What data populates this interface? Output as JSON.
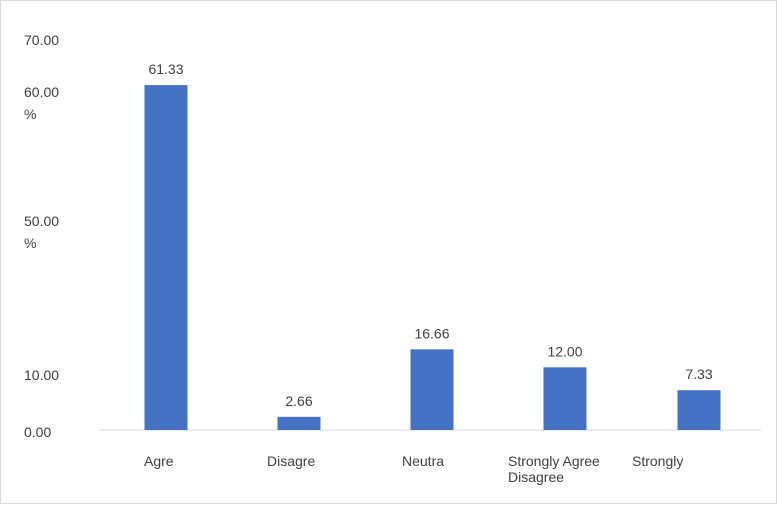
{
  "chart_data": {
    "type": "bar",
    "categories": [
      "Agre",
      "Disagre",
      "Neutra",
      "Strongly Agree",
      "Strongly Disagree"
    ],
    "category_lines": [
      [
        "Agre"
      ],
      [
        "Disagre"
      ],
      [
        "Neutra"
      ],
      [
        "Strongly Agree"
      ],
      [
        "Strongly",
        "Disagree"
      ]
    ],
    "values": [
      61.33,
      2.66,
      16.66,
      12.0,
      7.33
    ],
    "data_labels": [
      "61.33",
      "2.66",
      "16.66",
      "12.00",
      "7.33"
    ],
    "y_tick_labels": [
      {
        "value": 70,
        "lines": [
          "70.00"
        ]
      },
      {
        "value": 60,
        "lines": [
          "60.00",
          "%"
        ]
      },
      {
        "value": 50,
        "lines": [
          "50.00",
          "%"
        ]
      },
      {
        "value": 10,
        "lines": [
          "10.00"
        ]
      },
      {
        "value": 0,
        "lines": [
          "0.00"
        ]
      }
    ],
    "ylim": [
      0,
      70
    ],
    "grid": false,
    "legend": "none",
    "bar_color": "#4472c4",
    "axis_color": "#d9d9d9",
    "text_color": "#404040"
  }
}
